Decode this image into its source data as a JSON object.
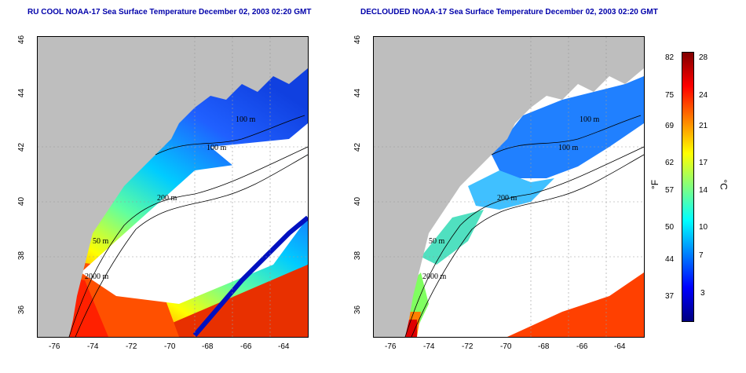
{
  "titles": {
    "left": "RU COOL NOAA-17 Sea Surface Temperature December 02, 2003 02:20 GMT",
    "right": "DECLOUDED NOAA-17 Sea Surface Temperature December 02, 2003 02:20 GMT"
  },
  "axes": {
    "x_ticks": [
      "-76",
      "-74",
      "-72",
      "-70",
      "-68",
      "-66",
      "-64"
    ],
    "y_ticks": [
      "46",
      "44",
      "42",
      "40",
      "38",
      "36"
    ],
    "lon_range": [
      -77.2,
      -63.0
    ],
    "lat_range": [
      35.0,
      46.0
    ]
  },
  "depth_contours": {
    "d100": "100 m",
    "d200": "200 m",
    "d50": "50 m",
    "d2000": "2000 m"
  },
  "colorbar": {
    "fahrenheit_ticks": [
      "82",
      "75",
      "69",
      "62",
      "57",
      "50",
      "44",
      "37"
    ],
    "celsius_ticks": [
      "28",
      "24",
      "21",
      "17",
      "14",
      "10",
      "7",
      "3"
    ],
    "unit_f": "°F",
    "unit_c": "°C",
    "colors": [
      "#000080",
      "#0000ff",
      "#0080ff",
      "#00ffff",
      "#80ff80",
      "#ffff00",
      "#ff8000",
      "#ff0000",
      "#800000"
    ]
  },
  "colors": {
    "land": "#bebebe",
    "cloud": "#ffffff",
    "title": "#0000aa"
  }
}
